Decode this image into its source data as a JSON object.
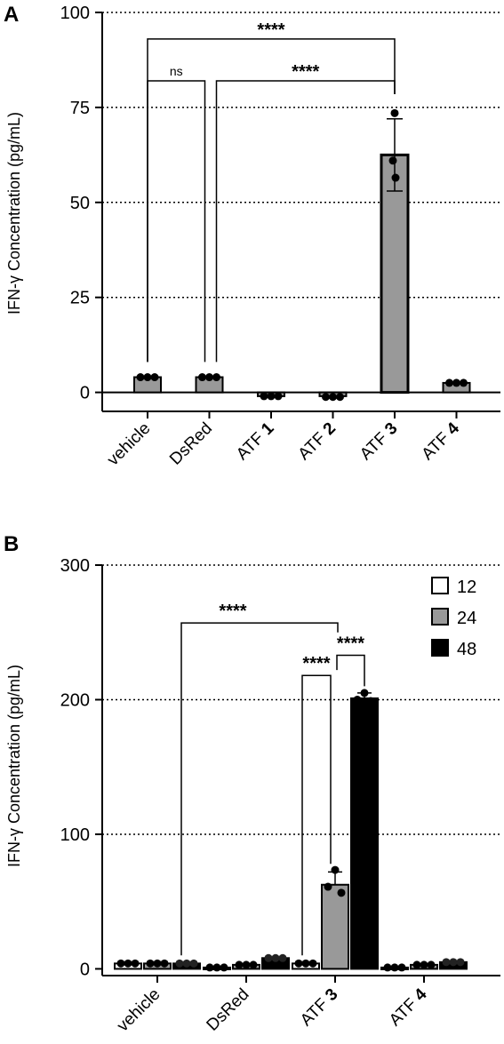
{
  "chart_data": [
    {
      "panel": "A",
      "type": "bar",
      "ylabel": "IFN-γ Concentration (pg/mL)",
      "ylim": [
        -5,
        100
      ],
      "yticks": [
        "0",
        "25",
        "50",
        "75",
        "100"
      ],
      "ytick_values": [
        0,
        25,
        50,
        75,
        100
      ],
      "grid": "dotted horizontal at 25, 50, 75, 100",
      "categories": [
        {
          "label": "vehicle",
          "prefix": "vehicle",
          "num": ""
        },
        {
          "label": "DsRed",
          "prefix": "DsRed",
          "num": ""
        },
        {
          "label": "ATF 1",
          "prefix": "ATF ",
          "num": "1"
        },
        {
          "label": "ATF 2",
          "prefix": "ATF ",
          "num": "2"
        },
        {
          "label": "ATF 3",
          "prefix": "ATF ",
          "num": "3"
        },
        {
          "label": "ATF 4",
          "prefix": "ATF ",
          "num": "4"
        }
      ],
      "values": [
        4,
        4,
        -1,
        -1,
        62.5,
        2.5
      ],
      "error": [
        0.5,
        0.5,
        0.3,
        0.3,
        9.5,
        0.4
      ],
      "points": [
        [
          4,
          4,
          4
        ],
        [
          4,
          4,
          4
        ],
        [
          -1,
          -1,
          -1
        ],
        [
          -1.2,
          -1.2,
          -1.2
        ],
        [
          73.5,
          61,
          56.5
        ],
        [
          2.5,
          2.5,
          2.5
        ]
      ],
      "color": "#999999",
      "significance": [
        {
          "from": 0,
          "to": 4,
          "label": "****",
          "y": 93
        },
        {
          "from": 0,
          "to": 1,
          "label": "ns",
          "y": 82
        },
        {
          "from": 1,
          "to": 4,
          "label": "****",
          "y": 82
        }
      ]
    },
    {
      "panel": "B",
      "type": "bar",
      "ylabel": "IFN-γ Concentration (pg/mL)",
      "ylim": [
        -5,
        300
      ],
      "yticks": [
        "0",
        "100",
        "200",
        "300"
      ],
      "ytick_values": [
        0,
        100,
        200,
        300
      ],
      "grid": "dotted horizontal at 100, 200, 300",
      "legend": "top-right",
      "categories": [
        {
          "label": "vehicle",
          "prefix": "vehicle",
          "num": ""
        },
        {
          "label": "DsRed",
          "prefix": "DsRed",
          "num": ""
        },
        {
          "label": "ATF 3",
          "prefix": "ATF ",
          "num": "3"
        },
        {
          "label": "ATF 4",
          "prefix": "ATF ",
          "num": "4"
        }
      ],
      "series": [
        {
          "name": "12",
          "color": "#ffffff",
          "values": [
            4,
            1,
            4,
            1
          ],
          "error": [
            1,
            0.5,
            0.5,
            0.5
          ],
          "points": [
            [
              4,
              4,
              4
            ],
            [
              1,
              1,
              1
            ],
            [
              4,
              4,
              4
            ],
            [
              1,
              1,
              1
            ]
          ]
        },
        {
          "name": "24",
          "color": "#999999",
          "values": [
            4,
            3,
            62.5,
            3
          ],
          "error": [
            1,
            0.5,
            9.5,
            0.5
          ],
          "points": [
            [
              4,
              4,
              4
            ],
            [
              3,
              3,
              3
            ],
            [
              73.5,
              61,
              56.5
            ],
            [
              3,
              3,
              3
            ]
          ]
        },
        {
          "name": "48",
          "color": "#000000",
          "values": [
            4,
            8,
            201,
            5
          ],
          "error": [
            1,
            1,
            4,
            1
          ],
          "points": [
            [
              4,
              4,
              4
            ],
            [
              8,
              8,
              8
            ],
            [
              205,
              200,
              199
            ],
            [
              5,
              5,
              5
            ]
          ]
        }
      ],
      "significance": [
        {
          "from": [
            0,
            1
          ],
          "to": [
            2,
            1
          ],
          "label": "****",
          "y": 257
        },
        {
          "from": [
            2,
            1
          ],
          "to": [
            2,
            2
          ],
          "label": "****",
          "y": 233
        },
        {
          "from": [
            2,
            0
          ],
          "to": [
            2,
            1
          ],
          "label": "****",
          "y": 218
        }
      ]
    }
  ]
}
